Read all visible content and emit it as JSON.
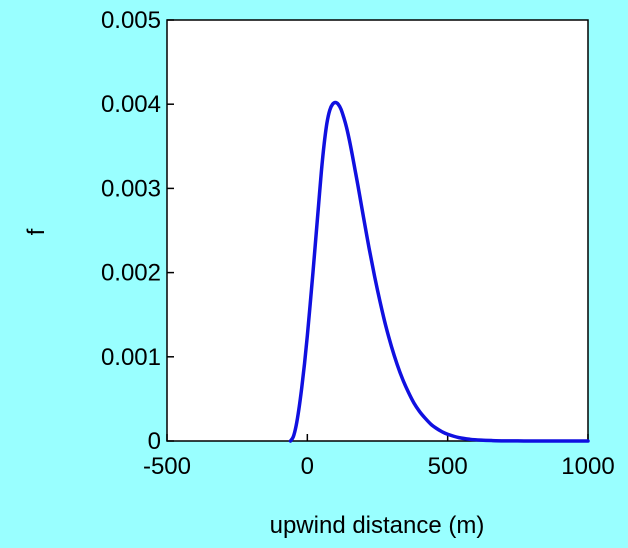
{
  "page": {
    "background": "#99ffff"
  },
  "chart_data": {
    "type": "line",
    "title": "",
    "xlabel": "upwind distance (m)",
    "ylabel": "f",
    "xlim": [
      -500,
      1000
    ],
    "ylim": [
      0,
      0.005
    ],
    "x_ticks": [
      -500,
      0,
      500,
      1000
    ],
    "x_tick_labels": [
      "-500",
      "0",
      "500",
      "1000"
    ],
    "y_ticks": [
      0,
      0.001,
      0.002,
      0.003,
      0.004,
      0.005
    ],
    "y_tick_labels": [
      "0",
      "0.001",
      "0.002",
      "0.003",
      "0.004",
      "0.005"
    ],
    "grid": false,
    "plot_background": "#ffffff",
    "series": [
      {
        "color": "#1010e0",
        "x": [
          -60,
          -50,
          -40,
          -30,
          -20,
          -10,
          0,
          10,
          20,
          30,
          40,
          50,
          60,
          70,
          80,
          90,
          100,
          110,
          120,
          130,
          140,
          150,
          160,
          170,
          180,
          190,
          200,
          220,
          240,
          260,
          280,
          300,
          320,
          340,
          360,
          380,
          400,
          420,
          440,
          460,
          480,
          500,
          540,
          580,
          620,
          660,
          700,
          750,
          800,
          850,
          900,
          950,
          1000
        ],
        "y": [
          0.0,
          5e-05,
          0.00018,
          0.00038,
          0.00063,
          0.00092,
          0.00125,
          0.00162,
          0.002,
          0.0024,
          0.0028,
          0.0032,
          0.00353,
          0.00378,
          0.00393,
          0.004,
          0.00402,
          0.004,
          0.00394,
          0.00384,
          0.00372,
          0.00357,
          0.0034,
          0.00322,
          0.00304,
          0.00285,
          0.00266,
          0.00229,
          0.00195,
          0.00164,
          0.00136,
          0.00112,
          0.00091,
          0.00073,
          0.00058,
          0.00045,
          0.00035,
          0.00027,
          0.0002,
          0.00015,
          0.00011,
          8e-05,
          4e-05,
          2e-05,
          1e-05,
          5e-06,
          2e-06,
          1e-06,
          0.0,
          0.0,
          0.0,
          0.0,
          0.0
        ]
      }
    ]
  }
}
